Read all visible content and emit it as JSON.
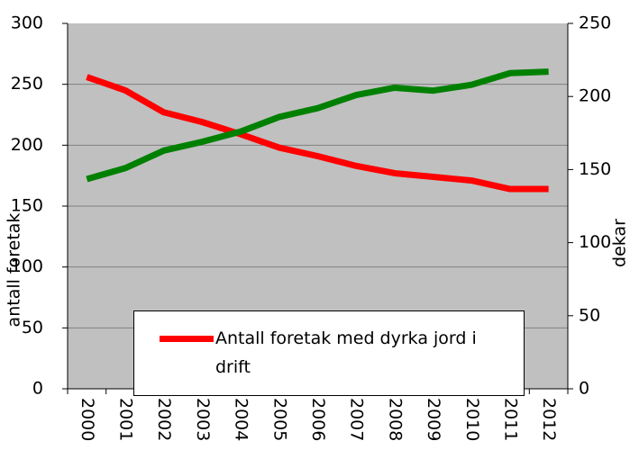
{
  "chart_data": {
    "type": "line",
    "y_label": "antall foretak",
    "y2_label": "dekar",
    "categories": [
      "2000",
      "2001",
      "2002",
      "2003",
      "2004",
      "2005",
      "2006",
      "2007",
      "2008",
      "2009",
      "2010",
      "2011",
      "2012"
    ],
    "series": [
      {
        "name": "Antall foretak med dyrka jord i drift",
        "color": "#ff0000",
        "values": [
          256,
          245,
          227,
          219,
          209,
          198,
          191,
          183,
          177,
          174,
          171,
          164,
          164
        ]
      },
      {
        "color": "#008000",
        "axis": "y2",
        "values": [
          143.5,
          151,
          163,
          169,
          176,
          186,
          192,
          201,
          206,
          204,
          208,
          216,
          217
        ]
      }
    ],
    "ylim": [
      0,
      300
    ],
    "yticks": [
      0,
      50,
      100,
      150,
      200,
      250,
      300
    ],
    "y2lim": [
      0,
      250
    ],
    "y2ticks": [
      0,
      50,
      100,
      150,
      200,
      250
    ],
    "grid": true
  }
}
